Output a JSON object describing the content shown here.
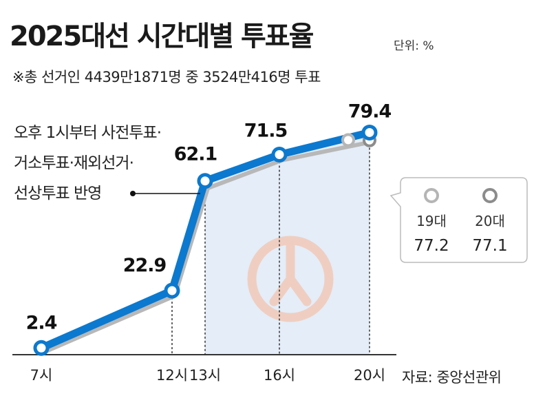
{
  "header": {
    "title": "2025대선 시간대별 투표율",
    "unit": "단위: %",
    "subtitle": "※총 선거인 4439만1871명 중 3524만416명 투표"
  },
  "note": {
    "lines": [
      "오후 1시부터 사전투표·",
      "거소투표·재외선거·",
      "선상투표 반영"
    ]
  },
  "comparison": {
    "items": [
      {
        "label": "19대",
        "value": "77.2",
        "color": "#b5b5b5"
      },
      {
        "label": "20대",
        "value": "77.1",
        "color": "#8c8c8c"
      }
    ]
  },
  "source": "자료: 중앙선관위",
  "colors": {
    "line": "#0b79cf",
    "area": "#e4edf8",
    "prior": "#b8b8b8",
    "stamp": "#f1c9b8"
  },
  "chart_data": {
    "type": "line",
    "title": "2025대선 시간대별 투표율",
    "xlabel": "",
    "ylabel": "",
    "ylim": [
      0,
      80
    ],
    "grid": false,
    "x": [
      "7시",
      "12시",
      "13시",
      "16시",
      "20시"
    ],
    "series": [
      {
        "values": [
          2.4,
          22.9,
          62.1,
          71.5,
          79.4
        ],
        "labels": [
          "2.4",
          "22.9",
          "62.1",
          "71.5",
          "79.4"
        ]
      }
    ],
    "prior_endpoints": [
      {
        "name": "19대",
        "value": 77.2
      },
      {
        "name": "20대",
        "value": 77.1
      }
    ]
  }
}
